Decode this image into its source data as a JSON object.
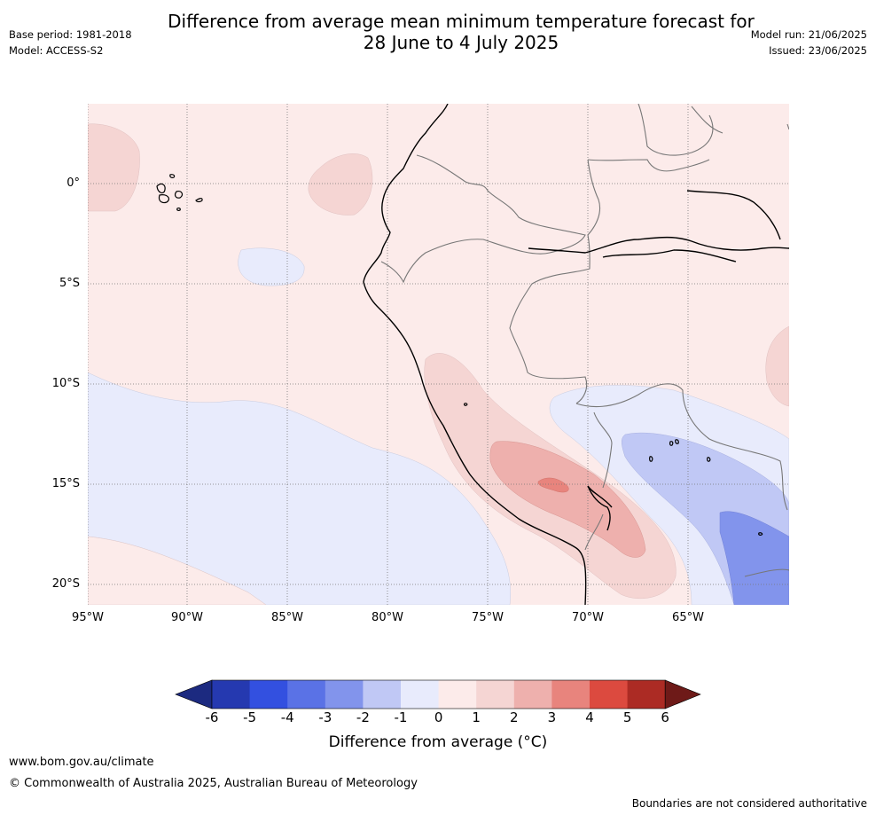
{
  "title_line1": "Difference from average mean minimum temperature forecast for",
  "title_line2": "28 June to 4 July 2025",
  "meta_left": {
    "base_period": "Base period: 1981-2018",
    "model": "Model: ACCESS-S2"
  },
  "meta_right": {
    "model_run": "Model run: 21/06/2025",
    "issued": "Issued: 23/06/2025"
  },
  "lat_labels": [
    "0°",
    "5°S",
    "10°S",
    "15°S",
    "20°S"
  ],
  "lon_labels": [
    "95°W",
    "90°W",
    "85°W",
    "80°W",
    "75°W",
    "70°W",
    "65°W"
  ],
  "colorbar": {
    "ticks": [
      "-6",
      "-5",
      "-4",
      "-3",
      "-2",
      "-1",
      "0",
      "1",
      "2",
      "3",
      "4",
      "5",
      "6"
    ],
    "title": "Difference from average (°C)",
    "colors": [
      "#1c2a80",
      "#2539b0",
      "#3350e0",
      "#5a72e6",
      "#8294ec",
      "#c0c8f5",
      "#e8ebfc",
      "#fcebea",
      "#f5d5d3",
      "#eeb0ad",
      "#e8847d",
      "#dc4a3f",
      "#ac2b24",
      "#6e1a18"
    ]
  },
  "footer": {
    "url": "www.bom.gov.au/climate",
    "copyright": "© Commonwealth of Australia 2025, Australian Bureau of Meteorology",
    "disclaimer": "Boundaries are not considered authoritative"
  }
}
